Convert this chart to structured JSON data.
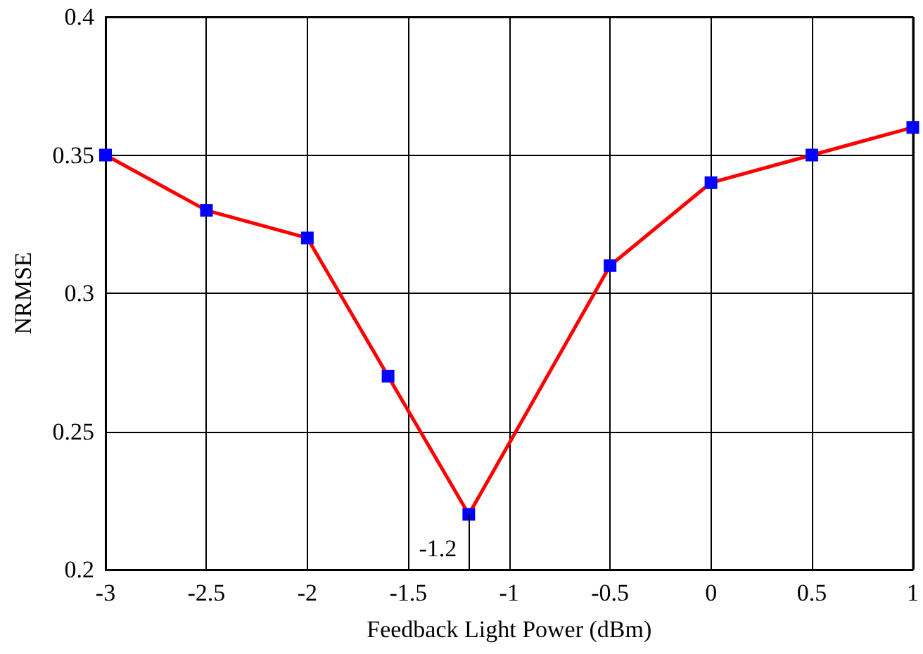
{
  "chart_data": {
    "type": "line",
    "xlabel": "Feedback Light Power (dBm)",
    "ylabel": "NRMSE",
    "x": [
      -3,
      -2.5,
      -2,
      -1.6,
      -1.2,
      -0.5,
      0,
      0.5,
      1
    ],
    "series": [
      {
        "color": "#ff0000",
        "colors": [
          "#0000ff",
          "#0000ff",
          "#0000ff",
          "#0000ff",
          "#0000ff",
          "#0000ff",
          "#0000ff",
          "#0000ff",
          "#0000ff"
        ],
        "values": [
          0.35,
          0.33,
          0.32,
          0.27,
          0.22,
          0.31,
          0.34,
          0.35,
          0.36
        ]
      }
    ],
    "xlim": [
      -3,
      1
    ],
    "xticks": [
      -3,
      -2.5,
      -2,
      -1.5,
      -1,
      -0.5,
      0,
      0.5,
      1
    ],
    "ylim": [
      0.2,
      0.4
    ],
    "yticks": [
      0.2,
      0.25,
      0.3,
      0.35,
      0.4
    ],
    "annotations": [
      {
        "text": "-1.2",
        "x": -1.2,
        "y": 0.22
      }
    ],
    "grid": true,
    "marker": "square",
    "line_style": "solid"
  }
}
